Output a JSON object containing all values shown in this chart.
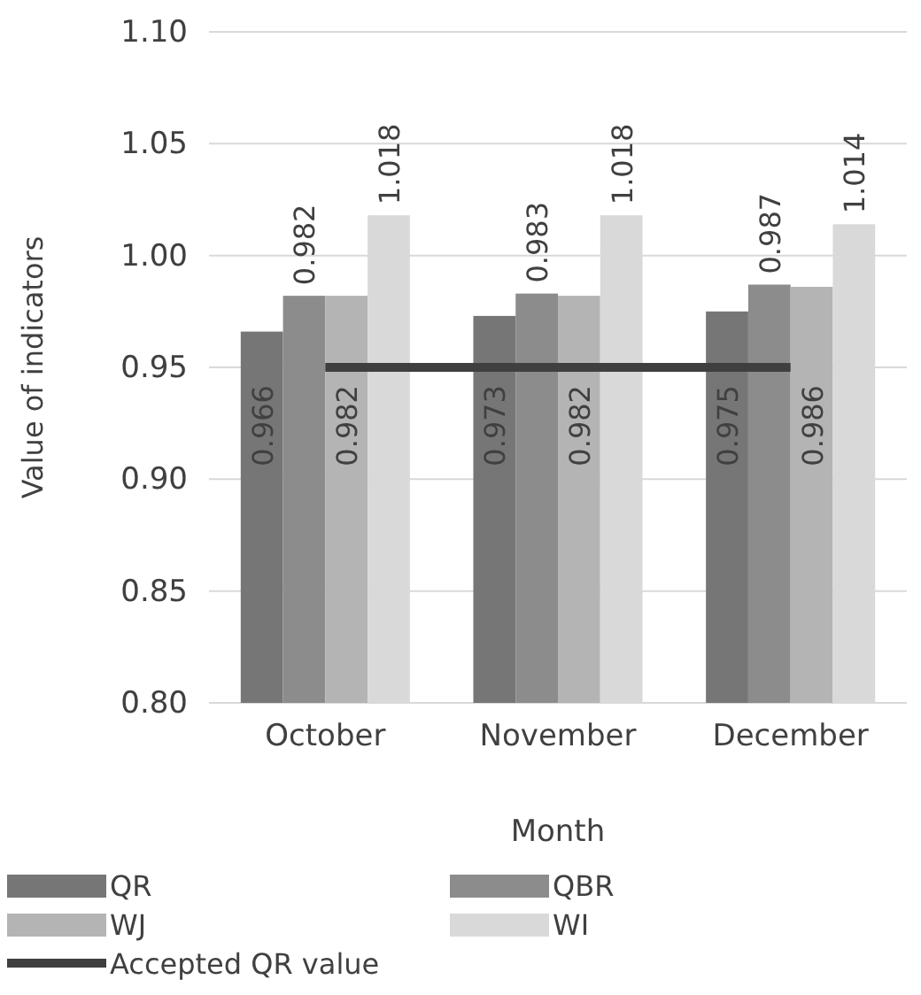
{
  "chart_data": {
    "type": "bar",
    "xlabel": "Month",
    "ylabel": "Value of indicators",
    "categories": [
      "October",
      "November",
      "December"
    ],
    "series": [
      {
        "name": "QR",
        "color": "#767676",
        "values": [
          0.966,
          0.973,
          0.975
        ],
        "value_labels": [
          "0.966",
          "0.973",
          "0.975"
        ]
      },
      {
        "name": "QBR",
        "color": "#8c8c8c",
        "values": [
          0.982,
          0.983,
          0.987
        ],
        "value_labels": [
          "0.982",
          "0.983",
          "0.987"
        ]
      },
      {
        "name": "WJ",
        "color": "#b4b4b4",
        "values": [
          0.982,
          0.982,
          0.986
        ],
        "value_labels": [
          "0.982",
          "0.982",
          "0.986"
        ]
      },
      {
        "name": "WI",
        "color": "#d9d9d9",
        "values": [
          1.018,
          1.018,
          1.014
        ],
        "value_labels": [
          "1.018",
          "1.018",
          "1.014"
        ]
      },
      {
        "name": "Accepted QR value",
        "type": "line",
        "color": "#3f3f3f",
        "values": [
          0.95,
          0.95,
          0.95
        ]
      }
    ],
    "ylim": [
      0.8,
      1.1
    ],
    "yticks": [
      {
        "value": 0.8,
        "label": "0.80"
      },
      {
        "value": 0.85,
        "label": "0.85"
      },
      {
        "value": 0.9,
        "label": "0.90"
      },
      {
        "value": 0.95,
        "label": "0.95"
      },
      {
        "value": 1.0,
        "label": "1.00"
      },
      {
        "value": 1.05,
        "label": "1.05"
      },
      {
        "value": 1.1,
        "label": "1.10"
      }
    ],
    "grid": "y",
    "legend": "bottom",
    "line_style": "solid",
    "marker": "none"
  }
}
